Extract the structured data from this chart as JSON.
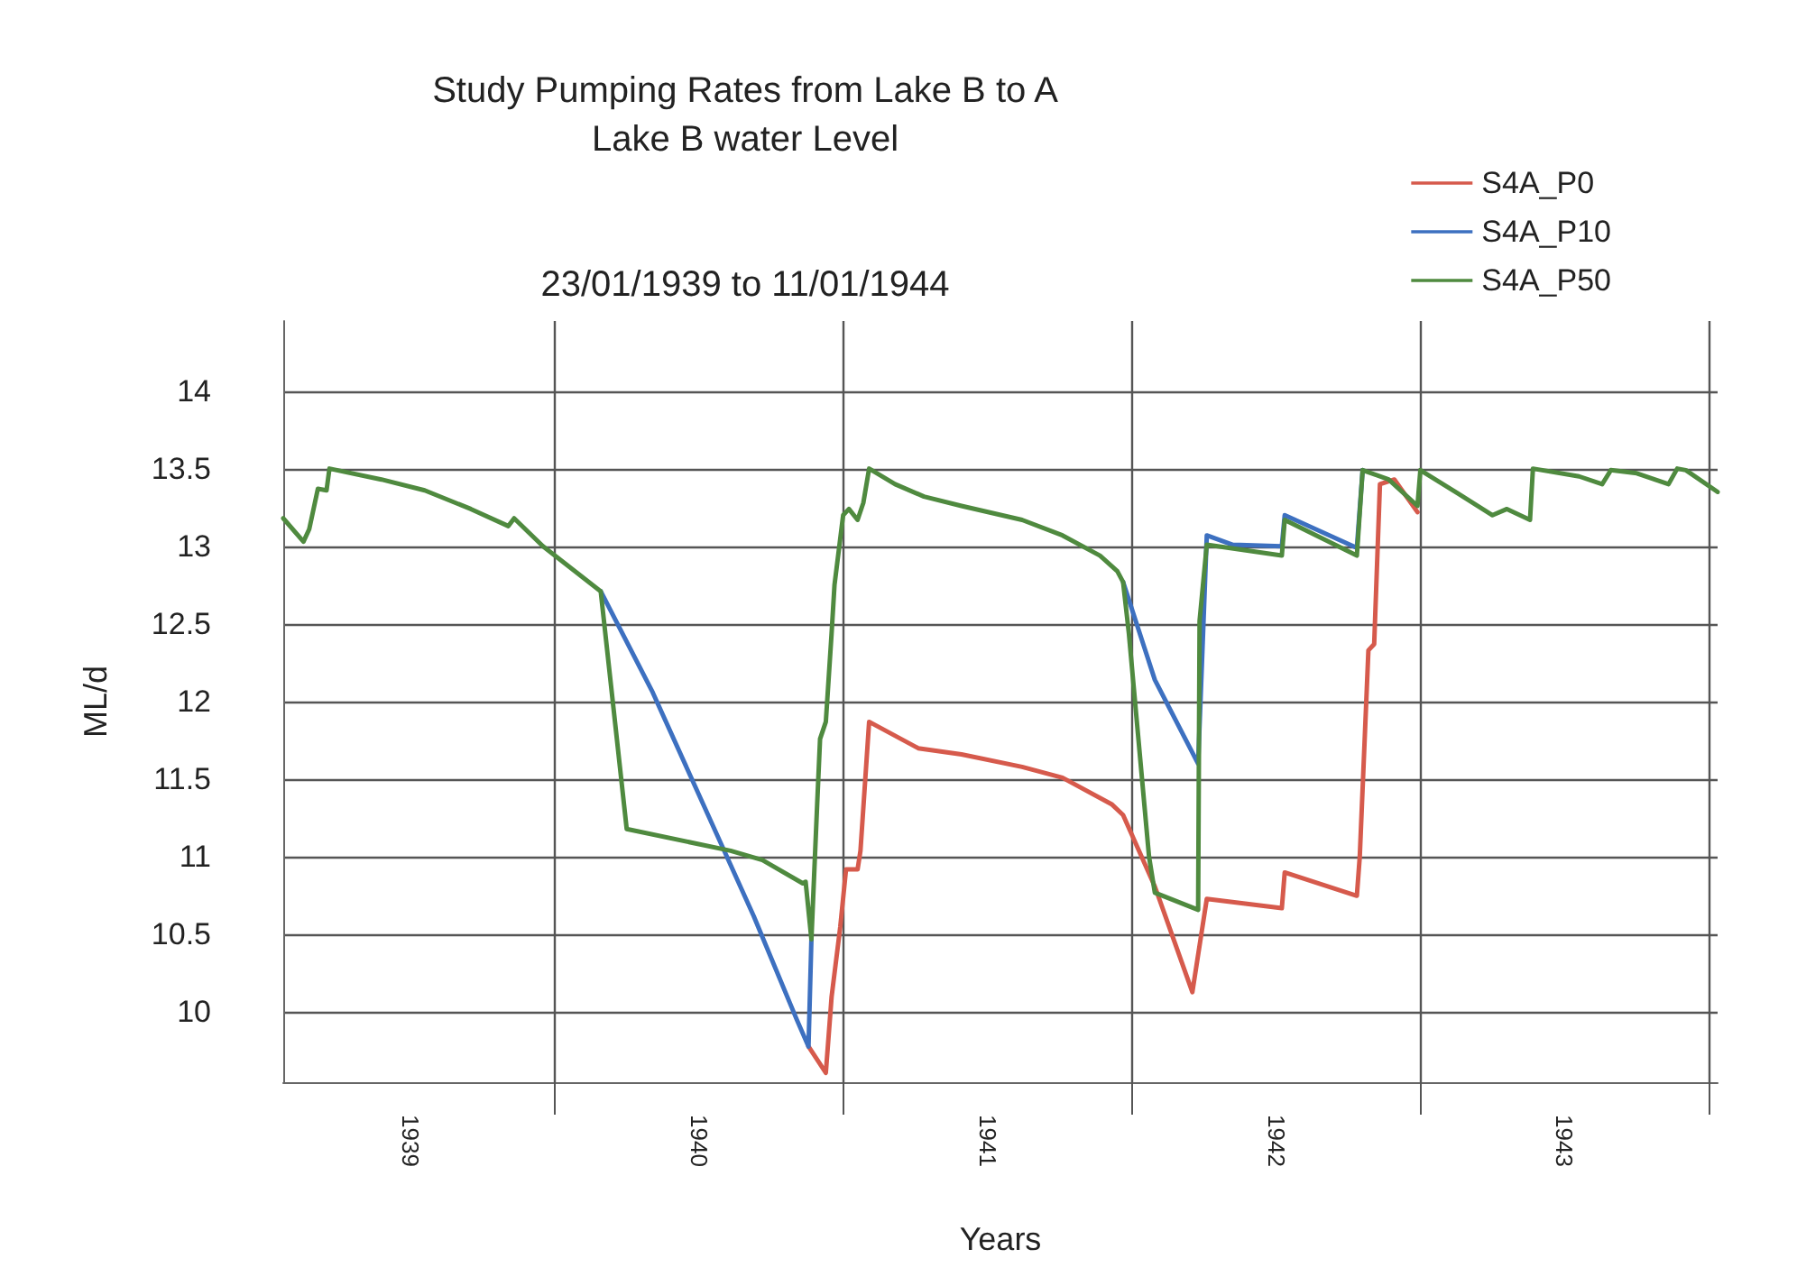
{
  "chart_data": {
    "type": "line",
    "title": "Study Pumping Rates from Lake B to A\nLake B water Level",
    "subtitle": "23/01/1939 to 11/01/1944",
    "xlabel": "Years",
    "ylabel": "ML/d",
    "xlim": [
      1939.06,
      1944.03
    ],
    "xticks": [
      {
        "value": 1939.5,
        "label": "1939"
      },
      {
        "value": 1940,
        "label": null
      },
      {
        "value": 1940.5,
        "label": "1940"
      },
      {
        "value": 1941,
        "label": null
      },
      {
        "value": 1941.5,
        "label": "1941"
      },
      {
        "value": 1942,
        "label": null
      },
      {
        "value": 1942.5,
        "label": "1942"
      },
      {
        "value": 1943,
        "label": null
      },
      {
        "value": 1943.5,
        "label": "1943"
      },
      {
        "value": 1944,
        "label": null
      }
    ],
    "ylim": [
      9.55,
      14.45
    ],
    "yticks": [
      10,
      10.5,
      11,
      11.5,
      12,
      12.5,
      13,
      13.5,
      14
    ],
    "grid": true,
    "legend": "top right",
    "marker": "none",
    "line_style": "solid",
    "series": [
      {
        "name": "S4A_P0",
        "color": "#d65a4c",
        "x": [
          1940.88,
          1940.94,
          1940.96,
          1940.99,
          1941.01,
          1941.05,
          1941.06,
          1941.09,
          1941.26,
          1941.41,
          1941.62,
          1941.76,
          1941.93,
          1941.97,
          1942.08,
          1942.21,
          1942.26,
          1942.52,
          1942.53,
          1942.78,
          1942.79,
          1942.82,
          1942.84,
          1942.86,
          1942.91,
          1942.99
        ],
        "values": [
          9.78,
          9.61,
          10.1,
          10.55,
          10.92,
          10.92,
          11.04,
          11.87,
          11.7,
          11.66,
          11.58,
          11.51,
          11.34,
          11.27,
          10.81,
          10.13,
          10.73,
          10.67,
          10.9,
          10.75,
          11.0,
          12.33,
          12.37,
          13.4,
          13.43,
          13.22
        ]
      },
      {
        "name": "S4A_P10",
        "color": "#3d70c0",
        "x": [
          1940.16,
          1940.34,
          1940.69,
          1940.84,
          1940.88,
          1940.89,
          1941.5,
          1941.97,
          1942.08,
          1942.23,
          1942.26,
          1942.35,
          1942.52,
          1942.53,
          1942.78,
          1942.8
        ],
        "values": [
          12.71,
          12.06,
          10.62,
          9.95,
          9.78,
          10.47,
          null,
          12.77,
          12.14,
          11.6,
          13.07,
          13.01,
          13.0,
          13.2,
          12.99,
          13.49
        ]
      },
      {
        "name": "S4A_P50",
        "color": "#4f8a3f",
        "x": [
          1939.06,
          1939.13,
          1939.15,
          1939.18,
          1939.21,
          1939.22,
          1939.4,
          1939.55,
          1939.71,
          1939.84,
          1939.86,
          1939.96,
          1940.16,
          1940.25,
          1940.61,
          1940.72,
          1940.86,
          1940.87,
          1940.89,
          1940.91,
          1940.92,
          1940.94,
          1940.96,
          1940.97,
          1941.0,
          1941.02,
          1941.05,
          1941.07,
          1941.09,
          1941.18,
          1941.28,
          1941.41,
          1941.62,
          1941.76,
          1941.89,
          1941.95,
          1941.97,
          1941.99,
          1942.06,
          1942.08,
          1942.23,
          1942.235,
          1942.26,
          1942.52,
          1942.53,
          1942.78,
          1942.8,
          1942.89,
          1942.99,
          1943.0,
          1943.13,
          1943.25,
          1943.3,
          1943.38,
          1943.39,
          1943.55,
          1943.63,
          1943.66,
          1943.75,
          1943.86,
          1943.89,
          1943.92,
          1944.03
        ],
        "values": [
          13.18,
          13.03,
          13.11,
          13.37,
          13.36,
          13.5,
          13.43,
          13.36,
          13.24,
          13.13,
          13.18,
          13.0,
          12.71,
          11.18,
          11.04,
          10.98,
          10.83,
          10.84,
          10.47,
          11.34,
          11.76,
          11.87,
          12.44,
          12.75,
          13.2,
          13.24,
          13.17,
          13.28,
          13.5,
          13.4,
          13.32,
          13.26,
          13.17,
          13.07,
          12.94,
          12.84,
          12.77,
          12.44,
          11.0,
          10.77,
          10.66,
          12.52,
          13.01,
          12.94,
          13.17,
          12.94,
          13.49,
          13.43,
          13.26,
          13.49,
          13.34,
          13.2,
          13.24,
          13.17,
          13.5,
          13.45,
          13.4,
          13.49,
          13.47,
          13.4,
          13.5,
          13.49,
          13.35
        ]
      }
    ]
  }
}
